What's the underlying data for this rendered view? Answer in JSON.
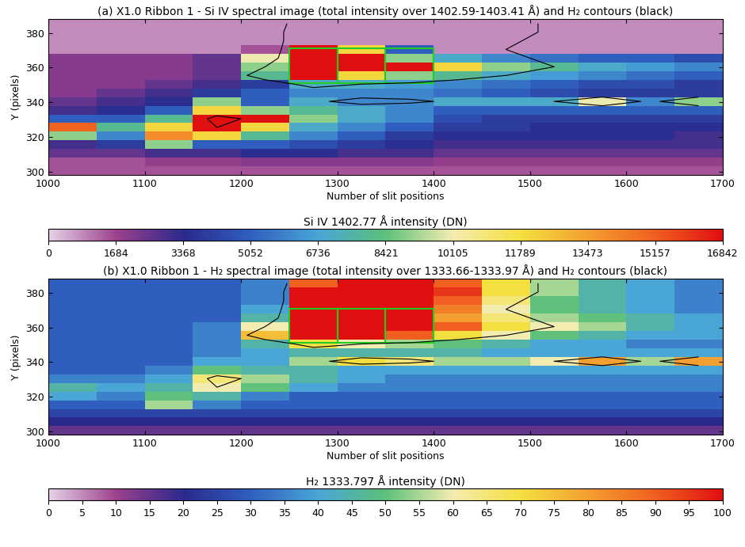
{
  "contour_level": 60,
  "chart_data": [
    {
      "type": "heatmap",
      "title": "(a) X1.0 Ribbon 1 - Si IV spectral image (total intensity over 1402.59-1403.41 Å) and H₂ contours (black)",
      "x_label": "Number of slit positions",
      "y_label": "Y (pixels)",
      "xlim": [
        1000,
        1700
      ],
      "ylim": [
        298,
        388
      ],
      "xticks": [
        1000,
        1100,
        1200,
        1300,
        1400,
        1500,
        1600,
        1700
      ],
      "yticks": [
        300,
        320,
        340,
        360,
        380
      ],
      "x_edges": [
        1000,
        1050,
        1100,
        1150,
        1200,
        1250,
        1300,
        1350,
        1400,
        1450,
        1500,
        1550,
        1600,
        1650,
        1700
      ],
      "y_edges": [
        298,
        303,
        308,
        313,
        318,
        323,
        328,
        333,
        338,
        343,
        348,
        353,
        358,
        363,
        368,
        373,
        378,
        383,
        388
      ],
      "cells": [
        [
          1500,
          1500,
          1500,
          1500,
          1500,
          1500,
          1500,
          1500,
          1500,
          1500,
          1500,
          1500,
          1500,
          1500
        ],
        [
          1500,
          1500,
          1800,
          1800,
          2000,
          2000,
          2000,
          2000,
          1800,
          1800,
          1800,
          1800,
          1800,
          1800
        ],
        [
          2500,
          2500,
          3000,
          3000,
          3500,
          3500,
          3000,
          3000,
          2500,
          2500,
          2500,
          2500,
          2500,
          2500
        ],
        [
          3000,
          4000,
          9000,
          5000,
          5000,
          4500,
          4000,
          3500,
          3000,
          3000,
          3000,
          3000,
          3000,
          3000
        ],
        [
          9000,
          6000,
          14000,
          12000,
          8000,
          6000,
          5000,
          4000,
          3500,
          3500,
          3500,
          3500,
          3500,
          3000
        ],
        [
          15000,
          8000,
          12000,
          16842,
          12000,
          7000,
          6000,
          5000,
          4000,
          4000,
          3500,
          3500,
          3500,
          3500
        ],
        [
          5000,
          5000,
          8000,
          16842,
          16842,
          9000,
          7000,
          6000,
          4500,
          4000,
          4000,
          4000,
          4000,
          4000
        ],
        [
          3000,
          3500,
          5000,
          12000,
          9000,
          8000,
          7000,
          6000,
          5000,
          5000,
          5000,
          5000,
          5000,
          5000
        ],
        [
          2500,
          3000,
          3500,
          9000,
          5000,
          7000,
          6000,
          6000,
          7000,
          7000,
          7000,
          10000,
          6000,
          9000
        ],
        [
          2000,
          2500,
          3000,
          4000,
          5000,
          6000,
          6000,
          6000,
          5500,
          5000,
          4500,
          4000,
          4000,
          4000
        ],
        [
          2000,
          2000,
          2500,
          3000,
          4000,
          7000,
          7000,
          6500,
          6000,
          5500,
          5000,
          4500,
          4500,
          4000
        ],
        [
          2000,
          2000,
          2000,
          2500,
          8000,
          16842,
          12000,
          9000,
          8000,
          7000,
          6500,
          6000,
          5500,
          5000
        ],
        [
          2000,
          2000,
          2000,
          2500,
          9000,
          16842,
          16842,
          16842,
          12000,
          9000,
          8000,
          7000,
          6500,
          6000
        ],
        [
          2000,
          2000,
          2000,
          2500,
          10000,
          16842,
          16842,
          9000,
          7000,
          6000,
          5500,
          5000,
          5000,
          4500
        ],
        [
          800,
          800,
          800,
          800,
          1500,
          16842,
          12000,
          5000,
          800,
          800,
          800,
          800,
          800,
          800
        ],
        [
          800,
          800,
          800,
          800,
          800,
          800,
          800,
          800,
          800,
          800,
          800,
          800,
          800,
          800
        ],
        [
          800,
          800,
          800,
          800,
          800,
          800,
          800,
          800,
          800,
          800,
          800,
          800,
          800,
          800
        ],
        [
          800,
          800,
          800,
          800,
          800,
          800,
          800,
          800,
          800,
          800,
          800,
          800,
          800,
          800
        ]
      ],
      "colorbar": {
        "label": "Si IV 1402.77 Å intensity (DN)",
        "range": [
          0,
          16842
        ],
        "ticks": [
          0,
          1684,
          3368,
          5052,
          6736,
          8421,
          10105,
          11789,
          13473,
          15157,
          16842
        ]
      },
      "boxes": [
        {
          "x": [
            1250,
            1300
          ],
          "y": [
            351,
            371
          ]
        },
        {
          "x": [
            1300,
            1350
          ],
          "y": [
            351,
            371
          ]
        },
        {
          "x": [
            1350,
            1400
          ],
          "y": [
            351,
            371
          ]
        }
      ],
      "box_color": "#22cc22"
    },
    {
      "type": "heatmap",
      "title": "(b) X1.0 Ribbon 1 - H₂ spectral image (total intensity over 1333.66-1333.97 Å) and H₂ contours (black)",
      "x_label": "Number of slit positions",
      "y_label": "Y (pixels)",
      "xlim": [
        1000,
        1700
      ],
      "ylim": [
        298,
        388
      ],
      "xticks": [
        1000,
        1100,
        1200,
        1300,
        1400,
        1500,
        1600,
        1700
      ],
      "yticks": [
        300,
        320,
        340,
        360,
        380
      ],
      "x_edges": [
        1000,
        1050,
        1100,
        1150,
        1200,
        1250,
        1300,
        1350,
        1400,
        1450,
        1500,
        1550,
        1600,
        1650,
        1700
      ],
      "y_edges": [
        298,
        303,
        308,
        313,
        318,
        323,
        328,
        333,
        338,
        343,
        348,
        353,
        358,
        363,
        368,
        373,
        378,
        383,
        388
      ],
      "cells": [
        [
          15,
          15,
          15,
          15,
          15,
          15,
          15,
          15,
          15,
          15,
          15,
          15,
          15,
          15
        ],
        [
          20,
          20,
          20,
          20,
          20,
          20,
          20,
          20,
          20,
          20,
          20,
          20,
          20,
          20
        ],
        [
          25,
          25,
          25,
          25,
          25,
          25,
          25,
          25,
          25,
          25,
          25,
          25,
          25,
          25
        ],
        [
          30,
          30,
          55,
          35,
          30,
          30,
          30,
          30,
          30,
          30,
          30,
          30,
          30,
          30
        ],
        [
          40,
          35,
          50,
          45,
          35,
          30,
          30,
          30,
          30,
          30,
          30,
          30,
          30,
          30
        ],
        [
          45,
          40,
          45,
          60,
          50,
          40,
          35,
          35,
          35,
          35,
          35,
          35,
          35,
          35
        ],
        [
          35,
          35,
          40,
          65,
          55,
          45,
          40,
          35,
          35,
          35,
          35,
          35,
          35,
          35
        ],
        [
          30,
          30,
          35,
          50,
          45,
          45,
          40,
          40,
          40,
          40,
          40,
          40,
          40,
          40
        ],
        [
          30,
          30,
          30,
          40,
          40,
          55,
          70,
          65,
          55,
          55,
          60,
          80,
          55,
          80
        ],
        [
          30,
          30,
          30,
          35,
          40,
          45,
          45,
          45,
          45,
          40,
          40,
          40,
          40,
          40
        ],
        [
          30,
          30,
          30,
          35,
          45,
          70,
          60,
          55,
          50,
          45,
          40,
          40,
          35,
          35
        ],
        [
          30,
          30,
          30,
          35,
          75,
          100,
          100,
          90,
          70,
          60,
          50,
          45,
          40,
          40
        ],
        [
          30,
          30,
          30,
          35,
          60,
          100,
          100,
          100,
          90,
          70,
          60,
          55,
          45,
          40
        ],
        [
          30,
          30,
          30,
          30,
          45,
          100,
          100,
          100,
          80,
          65,
          55,
          50,
          45,
          40
        ],
        [
          30,
          30,
          30,
          30,
          40,
          100,
          100,
          100,
          85,
          60,
          50,
          45,
          40,
          35
        ],
        [
          30,
          30,
          30,
          30,
          35,
          100,
          100,
          100,
          90,
          65,
          50,
          45,
          40,
          35
        ],
        [
          30,
          30,
          30,
          30,
          35,
          100,
          100,
          100,
          95,
          70,
          55,
          45,
          40,
          35
        ],
        [
          30,
          30,
          30,
          30,
          35,
          90,
          100,
          100,
          90,
          70,
          55,
          45,
          40,
          35
        ]
      ],
      "colorbar": {
        "label": "H₂ 1333.797 Å intensity (DN)",
        "range": [
          0,
          100
        ],
        "ticks": [
          0,
          5,
          10,
          15,
          20,
          25,
          30,
          35,
          40,
          45,
          50,
          55,
          60,
          65,
          70,
          75,
          80,
          85,
          90,
          95,
          100
        ]
      },
      "boxes": [
        {
          "x": [
            1250,
            1300
          ],
          "y": [
            351,
            371
          ]
        },
        {
          "x": [
            1300,
            1350
          ],
          "y": [
            351,
            371
          ]
        },
        {
          "x": [
            1350,
            1400
          ],
          "y": [
            351,
            371
          ]
        }
      ],
      "box_color": "#22cc22"
    }
  ]
}
